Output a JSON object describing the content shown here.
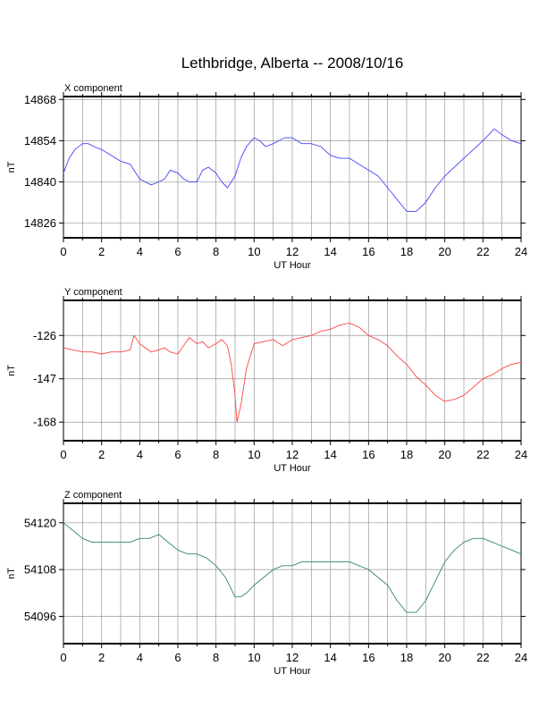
{
  "chart_data": {
    "title": "Lethbridge, Alberta -- 2008/10/16",
    "panels": [
      {
        "type": "line",
        "name": "X component",
        "xlabel": "UT Hour",
        "ylabel": "nT",
        "color": "#4444ff",
        "xlim": [
          0,
          24
        ],
        "ylim": [
          14821,
          14869
        ],
        "yticks": [
          14826,
          14840,
          14854,
          14868
        ],
        "xticks": [
          0,
          2,
          4,
          6,
          8,
          10,
          12,
          14,
          16,
          18,
          20,
          22,
          24
        ],
        "x": [
          0,
          0.3,
          0.6,
          1,
          1.3,
          1.6,
          2,
          2.5,
          3,
          3.5,
          4,
          4.3,
          4.6,
          5,
          5.3,
          5.6,
          6,
          6.3,
          6.6,
          7,
          7.3,
          7.6,
          8,
          8.3,
          8.6,
          9,
          9.3,
          9.6,
          10,
          10.3,
          10.6,
          11,
          11.3,
          11.6,
          12,
          12.5,
          13,
          13.5,
          14,
          14.5,
          15,
          15.5,
          16,
          16.5,
          17,
          17.5,
          18,
          18.5,
          19,
          19.5,
          20,
          20.5,
          21,
          21.5,
          22,
          22.3,
          22.6,
          23,
          23.5,
          24
        ],
        "y": [
          14843,
          14848,
          14851,
          14853,
          14853,
          14852,
          14851,
          14849,
          14847,
          14846,
          14841,
          14840,
          14839,
          14840,
          14841,
          14844,
          14843,
          14841,
          14840,
          14840,
          14844,
          14845,
          14843,
          14840,
          14838,
          14842,
          14848,
          14852,
          14855,
          14854,
          14852,
          14853,
          14854,
          14855,
          14855,
          14853,
          14853,
          14852,
          14849,
          14848,
          14848,
          14846,
          14844,
          14842,
          14838,
          14834,
          14830,
          14830,
          14833,
          14838,
          14842,
          14845,
          14848,
          14851,
          14854,
          14856,
          14858,
          14856,
          14854,
          14853
        ]
      },
      {
        "type": "line",
        "name": "Y component",
        "xlabel": "UT Hour",
        "ylabel": "nT",
        "color": "#ff4444",
        "xlim": [
          0,
          24
        ],
        "ylim": [
          -177,
          -109
        ],
        "yticks": [
          -126,
          -147,
          -168
        ],
        "xticks": [
          0,
          2,
          4,
          6,
          8,
          10,
          12,
          14,
          16,
          18,
          20,
          22,
          24
        ],
        "x": [
          0,
          0.5,
          1,
          1.5,
          2,
          2.5,
          3,
          3.5,
          3.7,
          4,
          4.3,
          4.6,
          5,
          5.3,
          5.6,
          6,
          6.3,
          6.6,
          7,
          7.3,
          7.6,
          8,
          8.3,
          8.6,
          8.8,
          9,
          9.1,
          9.3,
          9.6,
          10,
          10.5,
          11,
          11.5,
          12,
          12.5,
          13,
          13.5,
          14,
          14.5,
          15,
          15.5,
          16,
          16.5,
          17,
          17.5,
          18,
          18.5,
          19,
          19.5,
          20,
          20.5,
          21,
          21.5,
          22,
          22.5,
          23,
          23.5,
          24
        ],
        "y": [
          -132,
          -133,
          -134,
          -134,
          -135,
          -134,
          -134,
          -133,
          -126,
          -130,
          -132,
          -134,
          -133,
          -132,
          -134,
          -135,
          -131,
          -127,
          -130,
          -129,
          -132,
          -130,
          -128,
          -131,
          -140,
          -155,
          -168,
          -160,
          -142,
          -130,
          -129,
          -128,
          -131,
          -128,
          -127,
          -126,
          -124,
          -123,
          -121,
          -120,
          -122,
          -126,
          -128,
          -131,
          -136,
          -140,
          -146,
          -150,
          -155,
          -158,
          -157,
          -155,
          -151,
          -147,
          -145,
          -142,
          -140,
          -139
        ]
      },
      {
        "type": "line",
        "name": "Z component",
        "xlabel": "UT Hour",
        "ylabel": "nT",
        "color": "#338866",
        "xlim": [
          0,
          24
        ],
        "ylim": [
          54089,
          54125
        ],
        "yticks": [
          54096,
          54108,
          54120
        ],
        "xticks": [
          0,
          2,
          4,
          6,
          8,
          10,
          12,
          14,
          16,
          18,
          20,
          22,
          24
        ],
        "x": [
          0,
          0.5,
          1,
          1.5,
          2,
          2.5,
          3,
          3.5,
          4,
          4.5,
          5,
          5.5,
          6,
          6.5,
          7,
          7.5,
          8,
          8.5,
          9,
          9.3,
          9.6,
          10,
          10.5,
          11,
          11.5,
          12,
          12.5,
          13,
          13.5,
          14,
          14.5,
          15,
          15.5,
          16,
          16.5,
          17,
          17.5,
          18,
          18.5,
          19,
          19.5,
          20,
          20.5,
          21,
          21.5,
          22,
          22.5,
          23,
          23.5,
          24
        ],
        "y": [
          54120,
          54118,
          54116,
          54115,
          54115,
          54115,
          54115,
          54115,
          54116,
          54116,
          54117,
          54115,
          54113,
          54112,
          54112,
          54111,
          54109,
          54106,
          54101,
          54101,
          54102,
          54104,
          54106,
          54108,
          54109,
          54109,
          54110,
          54110,
          54110,
          54110,
          54110,
          54110,
          54109,
          54108,
          54106,
          54104,
          54100,
          54097,
          54097,
          54100,
          54105,
          54110,
          54113,
          54115,
          54116,
          54116,
          54115,
          54114,
          54113,
          54112
        ]
      }
    ]
  }
}
